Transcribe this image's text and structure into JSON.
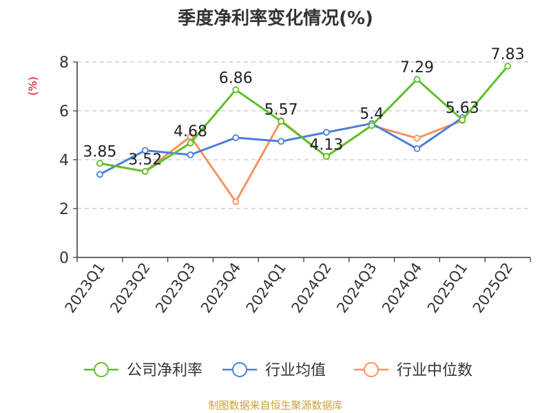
{
  "chart_data": {
    "type": "line",
    "title": "季度净利率变化情况(%)",
    "ylabel": "(%)",
    "xlabel": "",
    "ylim": [
      0,
      8
    ],
    "yticks": [
      0,
      2,
      4,
      6,
      8
    ],
    "grid": true,
    "legend_position": "bottom",
    "categories": [
      "2023Q1",
      "2023Q2",
      "2023Q3",
      "2023Q4",
      "2024Q1",
      "2024Q2",
      "2024Q3",
      "2024Q4",
      "2025Q1",
      "2025Q2"
    ],
    "series": [
      {
        "name": "公司净利率",
        "color": "#5cbf2a",
        "values": [
          3.85,
          3.52,
          4.68,
          6.86,
          5.57,
          4.13,
          5.4,
          7.29,
          5.63,
          7.83
        ],
        "labels": [
          "3.85",
          "3.52",
          "4.68",
          "6.86",
          "5.57",
          "4.13",
          "5.4",
          "7.29",
          "5.63",
          "7.83"
        ]
      },
      {
        "name": "行业均值",
        "color": "#4a7fdc",
        "values": [
          3.4,
          4.38,
          4.2,
          4.9,
          4.75,
          5.12,
          5.48,
          4.45,
          5.72,
          null
        ]
      },
      {
        "name": "行业中位数",
        "color": "#f5925e",
        "values": [
          3.85,
          3.52,
          4.95,
          2.28,
          5.6,
          4.13,
          5.4,
          4.88,
          5.6,
          null
        ]
      }
    ],
    "ylabel_color": "#cc0000"
  },
  "source_note": "制图数据来自恒生聚源数据库"
}
